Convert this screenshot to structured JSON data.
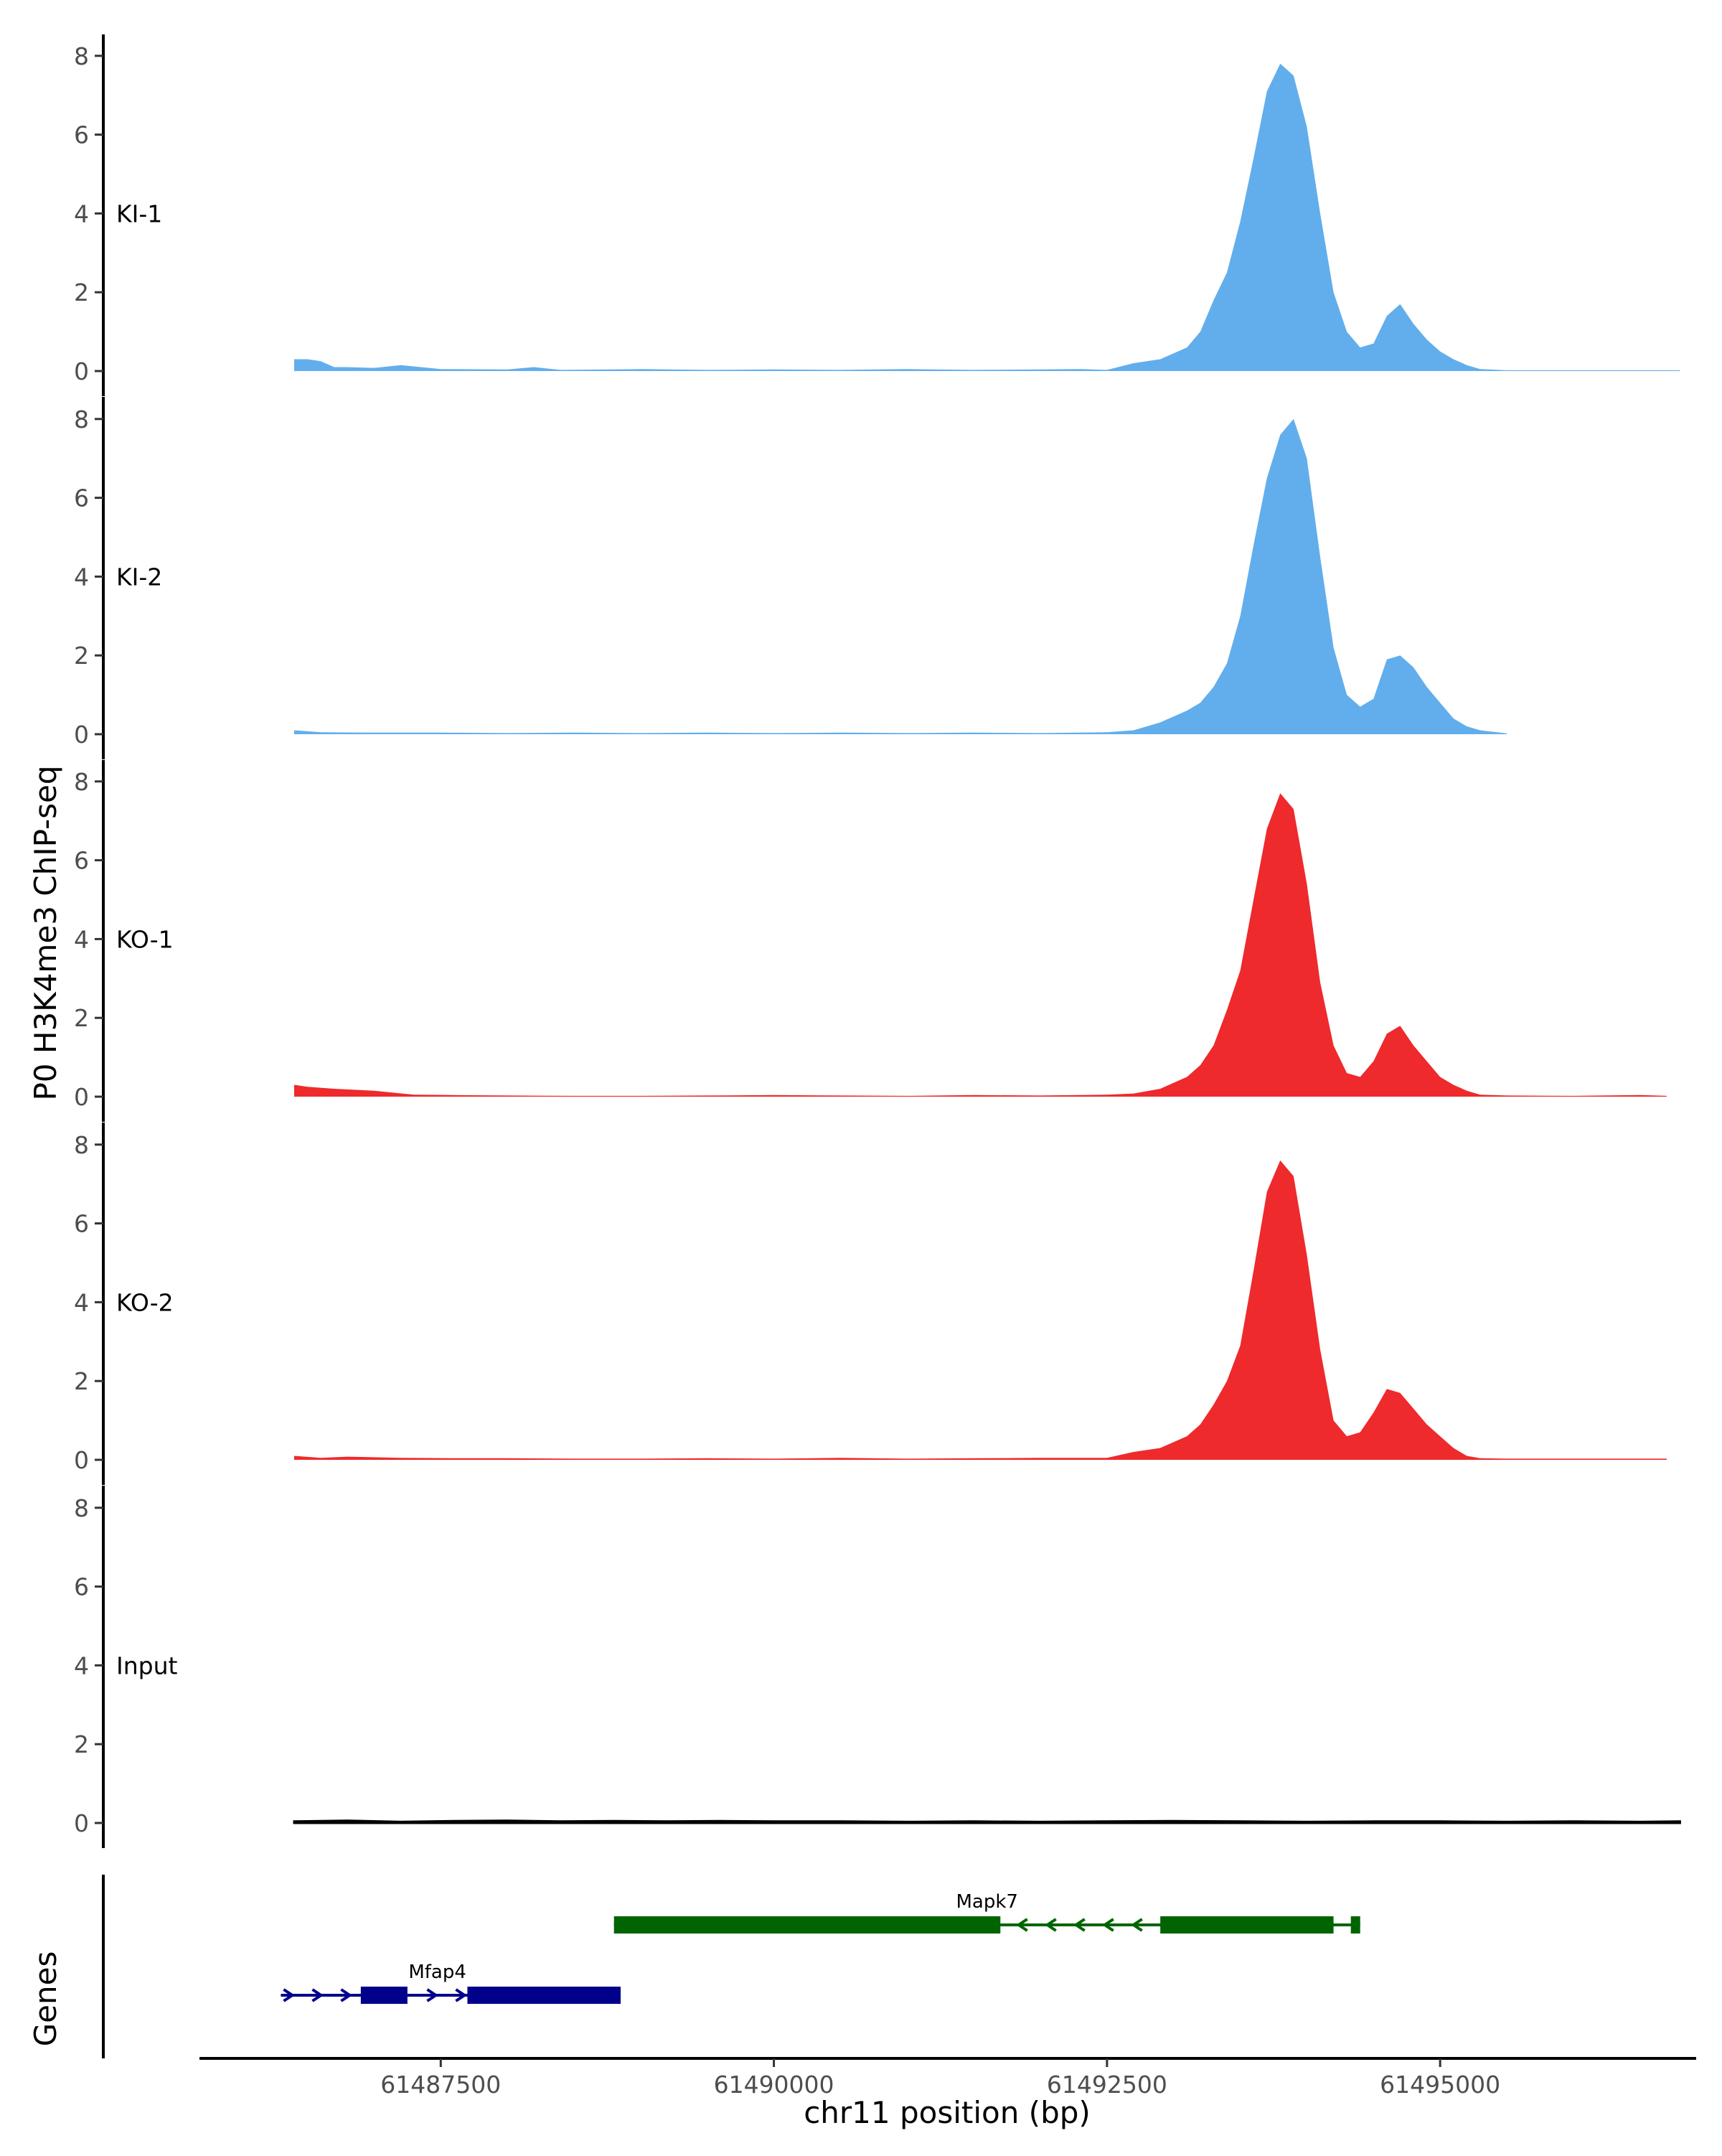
{
  "chart_data": {
    "type": "area",
    "title": "",
    "ylabel": "P0 H3K4me3 ChIP-seq",
    "xlabel": "chr11 position (bp)",
    "genes_label": "Genes",
    "xlim": [
      61485700,
      61496900
    ],
    "ylim": [
      0,
      8.4
    ],
    "x_ticks": [
      61487500,
      61490000,
      61492500,
      61495000
    ],
    "x_tick_labels": [
      "61487500",
      "61490000",
      "61492500",
      "61495000"
    ],
    "y_ticks": [
      0,
      2,
      4,
      6,
      8
    ],
    "y_tick_labels": [
      "0",
      "2",
      "4",
      "6",
      "8"
    ],
    "colors": {
      "KI": "#62aeec",
      "KO": "#ee2a2c",
      "Input": "#000000",
      "Mapk7": "#006400",
      "Mfap4": "#00008b"
    },
    "series": [
      {
        "name": "KI-1",
        "color": "#62aeec",
        "x": [
          61486400,
          61486500,
          61486600,
          61486700,
          61486800,
          61487000,
          61487200,
          61487500,
          61488000,
          61488200,
          61488400,
          61489000,
          61489500,
          61490000,
          61490500,
          61491000,
          61491500,
          61492000,
          61492300,
          61492500,
          61492700,
          61492900,
          61493100,
          61493200,
          61493300,
          61493400,
          61493500,
          61493600,
          61493700,
          61493800,
          61493900,
          61494000,
          61494100,
          61494200,
          61494300,
          61494400,
          61494500,
          61494600,
          61494700,
          61494800,
          61494900,
          61495000,
          61495100,
          61495200,
          61495300,
          61495500,
          61496000,
          61496500,
          61496800
        ],
        "y": [
          0.3,
          0.3,
          0.25,
          0.1,
          0.1,
          0.08,
          0.15,
          0.05,
          0.04,
          0.1,
          0.03,
          0.05,
          0.03,
          0.04,
          0.03,
          0.05,
          0.03,
          0.04,
          0.05,
          0.03,
          0.2,
          0.3,
          0.6,
          1.0,
          1.8,
          2.5,
          3.8,
          5.4,
          7.1,
          7.8,
          7.5,
          6.2,
          4.0,
          2.0,
          1.0,
          0.6,
          0.7,
          1.4,
          1.7,
          1.2,
          0.8,
          0.5,
          0.3,
          0.15,
          0.05,
          0.02,
          0.02,
          0.02,
          0.02
        ]
      },
      {
        "name": "KI-2",
        "color": "#62aeec",
        "x": [
          61486400,
          61486600,
          61487000,
          61487500,
          61488000,
          61488500,
          61489000,
          61489500,
          61490000,
          61490500,
          61491000,
          61491500,
          61492000,
          61492500,
          61492700,
          61492900,
          61493100,
          61493200,
          61493300,
          61493400,
          61493500,
          61493600,
          61493700,
          61493800,
          61493900,
          61494000,
          61494100,
          61494200,
          61494300,
          61494400,
          61494500,
          61494600,
          61494700,
          61494800,
          61494900,
          61495000,
          61495100,
          61495200,
          61495300,
          61495500
        ],
        "y": [
          0.1,
          0.05,
          0.04,
          0.04,
          0.03,
          0.04,
          0.03,
          0.04,
          0.03,
          0.04,
          0.03,
          0.04,
          0.03,
          0.05,
          0.1,
          0.3,
          0.6,
          0.8,
          1.2,
          1.8,
          3.0,
          4.8,
          6.5,
          7.6,
          8.0,
          7.0,
          4.5,
          2.2,
          1.0,
          0.7,
          0.9,
          1.9,
          2.0,
          1.7,
          1.2,
          0.8,
          0.4,
          0.2,
          0.1,
          0.02
        ]
      },
      {
        "name": "KO-1",
        "color": "#ee2a2c",
        "x": [
          61486400,
          61486500,
          61486700,
          61487000,
          61487300,
          61487600,
          61488000,
          61488500,
          61489000,
          61489500,
          61490000,
          61490500,
          61491000,
          61491500,
          61492000,
          61492500,
          61492700,
          61492900,
          61493100,
          61493200,
          61493300,
          61493400,
          61493500,
          61493600,
          61493700,
          61493800,
          61493900,
          61494000,
          61494100,
          61494200,
          61494300,
          61494400,
          61494500,
          61494600,
          61494700,
          61494800,
          61494900,
          61495000,
          61495100,
          61495200,
          61495300,
          61495500,
          61496000,
          61496500,
          61496700
        ],
        "y": [
          0.3,
          0.25,
          0.2,
          0.15,
          0.05,
          0.04,
          0.03,
          0.02,
          0.02,
          0.03,
          0.04,
          0.03,
          0.02,
          0.04,
          0.03,
          0.05,
          0.08,
          0.2,
          0.5,
          0.8,
          1.3,
          2.2,
          3.2,
          5.0,
          6.8,
          7.7,
          7.3,
          5.4,
          2.9,
          1.3,
          0.6,
          0.5,
          0.9,
          1.6,
          1.8,
          1.3,
          0.9,
          0.5,
          0.3,
          0.15,
          0.05,
          0.03,
          0.02,
          0.04,
          0.02
        ]
      },
      {
        "name": "KO-2",
        "color": "#ee2a2c",
        "x": [
          61486400,
          61486600,
          61486800,
          61487200,
          61487600,
          61488000,
          61488500,
          61489000,
          61489500,
          61490000,
          61490500,
          61491000,
          61491500,
          61492000,
          61492500,
          61492700,
          61492900,
          61493100,
          61493200,
          61493300,
          61493400,
          61493500,
          61493600,
          61493700,
          61493800,
          61493900,
          61494000,
          61494100,
          61494200,
          61494300,
          61494400,
          61494500,
          61494600,
          61494700,
          61494800,
          61494900,
          61495000,
          61495100,
          61495200,
          61495300,
          61495500,
          61496000,
          61496700
        ],
        "y": [
          0.1,
          0.05,
          0.08,
          0.05,
          0.04,
          0.04,
          0.03,
          0.03,
          0.04,
          0.03,
          0.05,
          0.03,
          0.04,
          0.05,
          0.05,
          0.2,
          0.3,
          0.6,
          0.9,
          1.4,
          2.0,
          2.9,
          4.8,
          6.8,
          7.6,
          7.2,
          5.2,
          2.8,
          1.0,
          0.6,
          0.7,
          1.2,
          1.8,
          1.7,
          1.3,
          0.9,
          0.6,
          0.3,
          0.1,
          0.04,
          0.03,
          0.03,
          0.03
        ]
      },
      {
        "name": "Input",
        "color": "#000000",
        "x": [
          61486400,
          61486800,
          61487200,
          61487600,
          61488000,
          61488400,
          61488800,
          61489200,
          61489600,
          61490000,
          61490500,
          61491000,
          61491500,
          61492000,
          61492500,
          61493000,
          61493500,
          61494000,
          61494500,
          61495000,
          61495500,
          61496000,
          61496500,
          61496800
        ],
        "y": [
          0.04,
          0.06,
          0.03,
          0.05,
          0.06,
          0.04,
          0.05,
          0.04,
          0.05,
          0.04,
          0.04,
          0.03,
          0.04,
          0.03,
          0.04,
          0.05,
          0.04,
          0.03,
          0.04,
          0.04,
          0.03,
          0.04,
          0.03,
          0.04
        ]
      }
    ],
    "genes": [
      {
        "name": "Mapk7",
        "strand": "-",
        "color": "#006400",
        "start": 61488800,
        "end": 61494400,
        "exons": [
          [
            61488800,
            61491700
          ],
          [
            61492900,
            61494200
          ],
          [
            61494330,
            61494400
          ]
        ]
      },
      {
        "name": "Mfap4",
        "strand": "+",
        "color": "#00008b",
        "start": 61486300,
        "end": 61488850,
        "exons": [
          [
            61486900,
            61487250
          ],
          [
            61487700,
            61488850
          ]
        ]
      }
    ]
  }
}
